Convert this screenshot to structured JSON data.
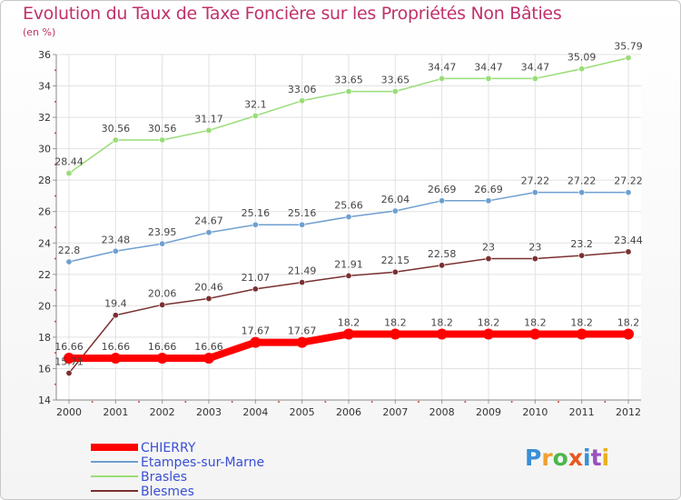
{
  "header": {
    "title": "Evolution du Taux de Taxe Foncière sur les Propriétés Non Bâties",
    "unit": "(en %)"
  },
  "logo": {
    "text": "Proxiti",
    "letters": [
      "P",
      "r",
      "o",
      "x",
      "i",
      "t",
      "i"
    ],
    "colors": [
      "#3a8fd6",
      "#f0a030",
      "#4bb84b",
      "#e85a20",
      "#3a8fd6",
      "#9a50c0",
      "#e8b020"
    ]
  },
  "chart_data": {
    "type": "line",
    "title": "Evolution du Taux de Taxe Foncière sur les Propriétés Non Bâties",
    "ylabel": "(en %)",
    "x": [
      "2000",
      "2001",
      "2002",
      "2003",
      "2004",
      "2005",
      "2006",
      "2007",
      "2008",
      "2009",
      "2010",
      "2011",
      "2012"
    ],
    "ylim": [
      14,
      36
    ],
    "yticks": [
      14,
      16,
      18,
      20,
      22,
      24,
      26,
      28,
      30,
      32,
      34,
      36
    ],
    "grid": true,
    "legend_position": "bottom-left",
    "series": [
      {
        "name": "CHIERRY",
        "color": "#ff0000",
        "values": [
          16.66,
          16.66,
          16.66,
          16.66,
          17.67,
          17.67,
          18.2,
          18.2,
          18.2,
          18.2,
          18.2,
          18.2,
          18.2
        ],
        "labels": [
          "16.66",
          "16.66",
          "16.66",
          "16.66",
          "17.67",
          "17.67",
          "18.2",
          "18.2",
          "18.2",
          "18.2",
          "18.2",
          "18.2",
          "18.2"
        ]
      },
      {
        "name": "Etampes-sur-Marne",
        "color": "#6f9fd0",
        "values": [
          22.8,
          23.48,
          23.95,
          24.67,
          25.16,
          25.16,
          25.66,
          26.04,
          26.69,
          26.69,
          27.22,
          27.22,
          27.22
        ],
        "labels": [
          "22.8",
          "23.48",
          "23.95",
          "24.67",
          "25.16",
          "25.16",
          "25.66",
          "26.04",
          "26.69",
          "26.69",
          "27.22",
          "27.22",
          "27.22"
        ]
      },
      {
        "name": "Brasles",
        "color": "#99dd77",
        "values": [
          28.44,
          30.56,
          30.56,
          31.17,
          32.1,
          33.06,
          33.65,
          33.65,
          34.47,
          34.47,
          34.47,
          35.09,
          35.79
        ],
        "labels": [
          "28.44",
          "30.56",
          "30.56",
          "31.17",
          "32.1",
          "33.06",
          "33.65",
          "33.65",
          "34.47",
          "34.47",
          "34.47",
          "35.09",
          "35.79"
        ]
      },
      {
        "name": "Blesmes",
        "color": "#7a3030",
        "values": [
          15.71,
          19.4,
          20.06,
          20.46,
          21.07,
          21.49,
          21.91,
          22.15,
          22.58,
          23,
          23,
          23.2,
          23.44
        ],
        "labels": [
          "15.71",
          "19.4",
          "20.06",
          "20.46",
          "21.07",
          "21.49",
          "21.91",
          "22.15",
          "22.58",
          "23",
          "23",
          "23.2",
          "23.44"
        ]
      }
    ]
  }
}
